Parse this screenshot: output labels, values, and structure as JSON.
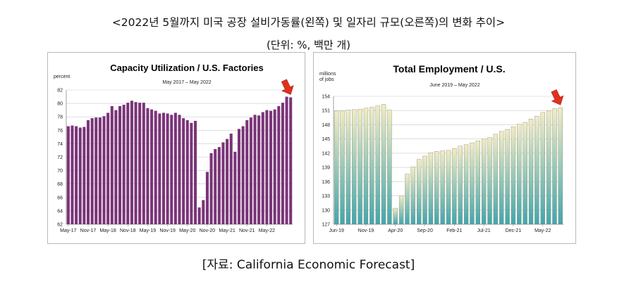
{
  "header": {
    "title": "<2022년 5월까지 미국 공장 설비가동률(왼쪽) 및 일자리 규모(오른쪽)의 변화 추이>",
    "unit": "(단위: %, 백만 개)"
  },
  "footer": {
    "source": "[자료: California Economic Forecast]"
  },
  "colors": {
    "left_bar": "#7a3478",
    "right_bar_top": "#f1ecc4",
    "right_bar_bottom": "#42a6ad",
    "arrow": "#e0301e",
    "grid": "#c9c9c9"
  },
  "chart_data": [
    {
      "type": "bar",
      "title": "Capacity Utilization / U.S. Factories",
      "subtitle": "May 2017 – May 2022",
      "ylabel": "percent",
      "ylim": [
        62,
        82
      ],
      "yticks": [
        62,
        64,
        66,
        68,
        70,
        72,
        74,
        76,
        78,
        80,
        82
      ],
      "xtick_labels": [
        "May-17",
        "Nov-17",
        "May-18",
        "Nov-18",
        "May-19",
        "Nov-19",
        "May-20",
        "Nov-20",
        "May-21",
        "Nov-21",
        "May-22"
      ],
      "grid": true,
      "values": [
        76.6,
        76.7,
        76.6,
        76.4,
        76.5,
        77.5,
        77.8,
        77.9,
        77.9,
        78.1,
        78.6,
        79.6,
        79.0,
        79.6,
        79.8,
        80.1,
        80.4,
        80.2,
        80.1,
        80.1,
        79.3,
        79.1,
        78.9,
        78.5,
        78.6,
        78.5,
        78.3,
        78.6,
        78.3,
        77.8,
        77.5,
        77.1,
        77.4,
        64.5,
        65.6,
        69.8,
        72.6,
        73.2,
        73.5,
        74.2,
        74.7,
        75.5,
        72.8,
        76.2,
        76.6,
        77.5,
        77.9,
        78.3,
        78.2,
        78.7,
        79.0,
        78.9,
        79.1,
        79.6,
        80.1,
        81.0,
        80.9
      ],
      "annotations": [
        {
          "type": "arrow",
          "target": "May-22"
        }
      ]
    },
    {
      "type": "bar",
      "title": "Total Employment / U.S.",
      "subtitle": "June 2019 – May 2022",
      "ylabel": "millions of jobs",
      "ylim": [
        127,
        154
      ],
      "yticks": [
        127,
        130,
        133,
        136,
        139,
        142,
        145,
        148,
        151,
        154
      ],
      "xtick_labels": [
        "Jun-19",
        "Nov-19",
        "Apr-20",
        "Sep-20",
        "Feb-21",
        "Jul-21",
        "Dec-21",
        "May-22"
      ],
      "grid": true,
      "values": [
        150.9,
        151.0,
        151.1,
        151.2,
        151.3,
        151.5,
        151.7,
        152.0,
        152.3,
        151.1,
        130.4,
        133.0,
        137.6,
        139.1,
        140.7,
        141.4,
        142.1,
        142.4,
        142.5,
        142.6,
        143.0,
        143.5,
        143.8,
        144.2,
        144.6,
        145.0,
        145.3,
        146.0,
        146.6,
        147.0,
        147.6,
        148.1,
        148.5,
        149.2,
        149.8,
        150.6,
        151.0,
        151.4,
        151.6
      ],
      "annotations": [
        {
          "type": "arrow",
          "target": "May-22"
        }
      ]
    }
  ]
}
